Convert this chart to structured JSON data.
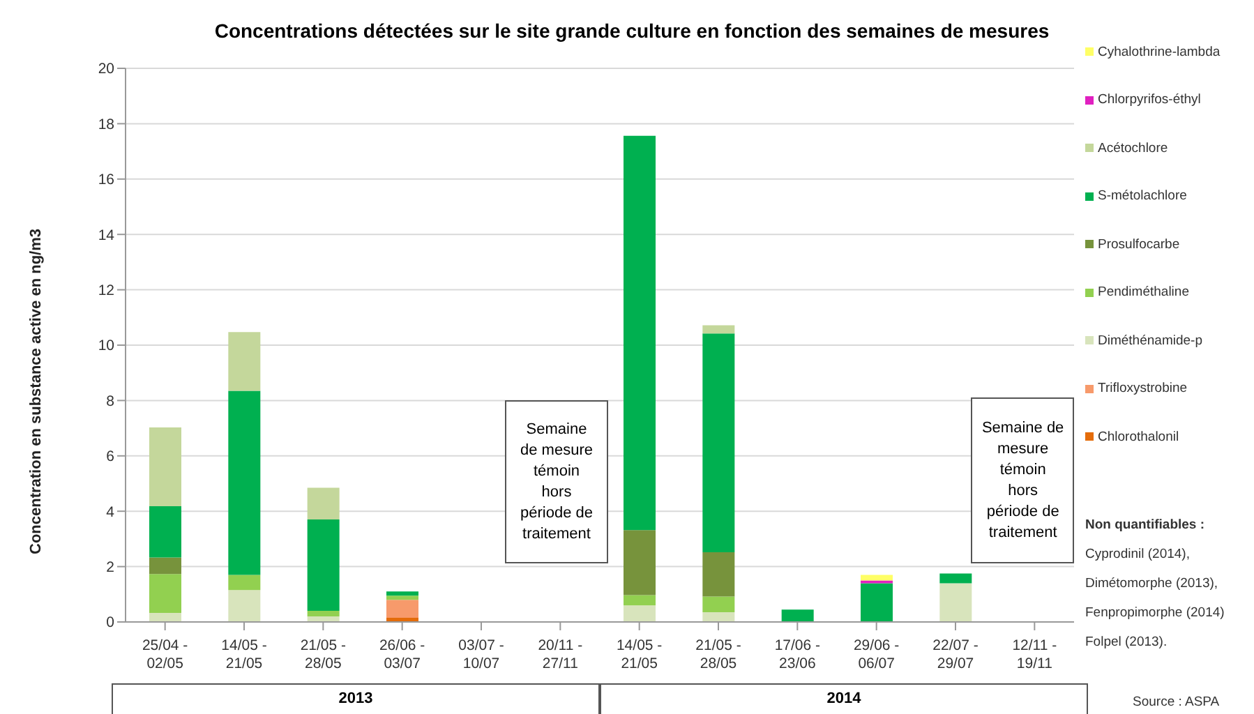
{
  "chart_data": {
    "type": "bar",
    "title": "Concentrations détectées sur le site grande culture en fonction des semaines de mesures",
    "ylabel": "Concentration en substance active en ng/m3",
    "categories": [
      "25/04 -\n02/05",
      "14/05 -\n21/05",
      "21/05 -\n28/05",
      "26/06 -\n03/07",
      "03/07 -\n10/07",
      "20/11 -\n27/11",
      "14/05 -\n21/05",
      "21/05 -\n28/05",
      "17/06 -\n23/06",
      "29/06 -\n06/07",
      "22/07 -\n29/07",
      "12/11 -\n19/11"
    ],
    "stacked": true,
    "ylim": [
      0,
      20
    ],
    "yticks": [
      0,
      2,
      4,
      6,
      8,
      10,
      12,
      14,
      16,
      18,
      20
    ],
    "grid": "y",
    "legend": "right",
    "series": [
      {
        "name": "Chlorothalonil",
        "color": "#e46c0a",
        "values": [
          0,
          0,
          0,
          0.15,
          0,
          0,
          0,
          0,
          0,
          0,
          0,
          0
        ]
      },
      {
        "name": "Trifloxystrobine",
        "color": "#f79a6b",
        "values": [
          0,
          0,
          0,
          0.65,
          0,
          0,
          0,
          0,
          0,
          0,
          0,
          0
        ]
      },
      {
        "name": "Diméthénamide-p",
        "color": "#d8e4bc",
        "values": [
          0.33,
          1.15,
          0.2,
          0,
          0,
          0,
          0.6,
          0.35,
          0,
          0,
          1.4,
          0
        ]
      },
      {
        "name": "Pendiméthaline",
        "color": "#92d050",
        "values": [
          1.4,
          0.55,
          0.2,
          0.15,
          0,
          0,
          0.37,
          0.57,
          0,
          0,
          0,
          0
        ]
      },
      {
        "name": "Prosulfocarbe",
        "color": "#77933c",
        "values": [
          0.6,
          0,
          0,
          0,
          0,
          0,
          2.35,
          1.6,
          0,
          0,
          0,
          0
        ]
      },
      {
        "name": "S-métolachlore",
        "color": "#00b050",
        "values": [
          1.85,
          6.65,
          3.3,
          0.15,
          0,
          0,
          14.24,
          7.9,
          0.45,
          1.4,
          0.35,
          0
        ]
      },
      {
        "name": "Acétochlore",
        "color": "#c4d79b",
        "values": [
          2.85,
          2.12,
          1.15,
          0,
          0,
          0,
          0,
          0.3,
          0,
          0,
          0,
          0
        ]
      },
      {
        "name": "Chlorpyrifos-éthyl",
        "color": "#e020c0",
        "values": [
          0,
          0,
          0,
          0,
          0,
          0,
          0,
          0,
          0,
          0.1,
          0,
          0
        ]
      },
      {
        "name": "Cyhalothrine-lambda",
        "color": "#ffff66",
        "values": [
          0,
          0,
          0,
          0,
          0,
          0,
          0,
          0,
          0,
          0.2,
          0,
          0
        ]
      }
    ],
    "annotations": [
      "2013",
      "2014",
      "Semaine\nde mesure\ntémoin\nhors\npériode de\ntraitement",
      "Semaine de\nmesure\ntémoin\nhors\npériode de\ntraitement",
      "Non quantifiables :",
      "Cyprodinil (2014),",
      "Dimétomorphe (2013),",
      "Fenpropimorphe (2014)",
      "Folpel (2013).",
      "Source : ASPA"
    ]
  }
}
